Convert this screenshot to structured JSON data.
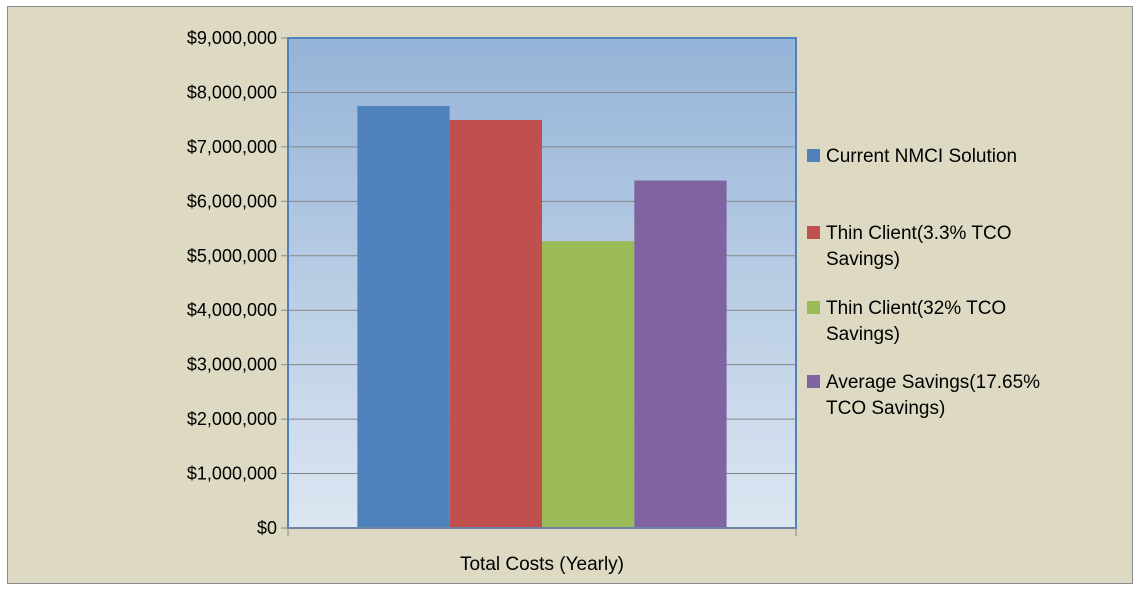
{
  "chart_data": {
    "type": "bar",
    "categories": [
      "Total Costs (Yearly)"
    ],
    "series": [
      {
        "name": "Current NMCI Solution",
        "values": [
          7750000
        ],
        "color": "#4f81bd"
      },
      {
        "name": "Thin Client(3.3% TCO Savings)",
        "values": [
          7494250
        ],
        "color": "#c0504d"
      },
      {
        "name": "Thin Client(32% TCO Savings)",
        "values": [
          5270000
        ],
        "color": "#9bbb59"
      },
      {
        "name": "Average Savings(17.65% TCO Savings)",
        "values": [
          6382125
        ],
        "color": "#8064a2"
      }
    ],
    "legend_lines": [
      [
        "Current NMCI Solution"
      ],
      [
        "Thin Client(3.3% TCO",
        "Savings)"
      ],
      [
        "Thin Client(32% TCO",
        "Savings)"
      ],
      [
        "Average Savings(17.65%",
        "TCO Savings)"
      ]
    ],
    "y_ticks": [
      "$0",
      "$1,000,000",
      "$2,000,000",
      "$3,000,000",
      "$4,000,000",
      "$5,000,000",
      "$6,000,000",
      "$7,000,000",
      "$8,000,000",
      "$9,000,000"
    ],
    "ylim": [
      0,
      9000000
    ],
    "grid": true,
    "legend_position": "right",
    "colors": {
      "chart_background": "#ddd9c3",
      "plot_top": "#95b3d7",
      "plot_bottom": "#dce6f2",
      "plot_border": "#4f81bd"
    }
  }
}
